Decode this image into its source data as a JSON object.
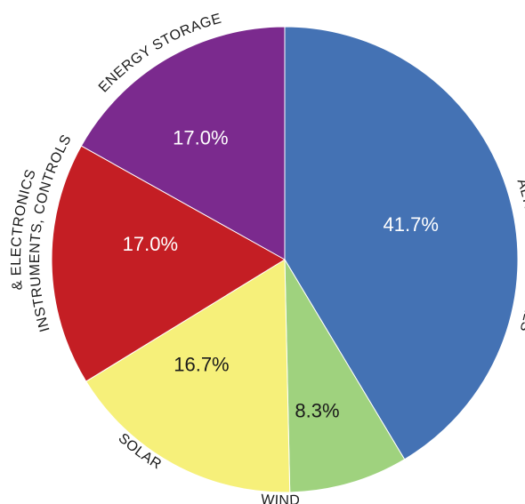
{
  "chart_data": {
    "type": "pie",
    "slices": [
      {
        "label": "ALTERNATIVE FUELS",
        "value": 41.7,
        "value_label": "41.7%",
        "color": "#4472b4",
        "text_color": "#ffffff"
      },
      {
        "label": "WIND",
        "value": 8.3,
        "value_label": "8.3%",
        "color": "#9fd27e",
        "text_color": "#1a1a1a"
      },
      {
        "label": "SOLAR",
        "value": 16.7,
        "value_label": "16.7%",
        "color": "#f6f07a",
        "text_color": "#1a1a1a"
      },
      {
        "label": "INSTRUMENTS, CONTROLS",
        "label_line2": "& ELECTRONICS",
        "value": 17.0,
        "value_label": "17.0%",
        "color": "#c41e24",
        "text_color": "#ffffff"
      },
      {
        "label": "ENERGY STORAGE",
        "value": 17.0,
        "value_label": "17.0%",
        "color": "#7b2a8e",
        "text_color": "#ffffff"
      }
    ],
    "start": "12 o'clock",
    "direction": "clockwise",
    "legend": "none"
  }
}
